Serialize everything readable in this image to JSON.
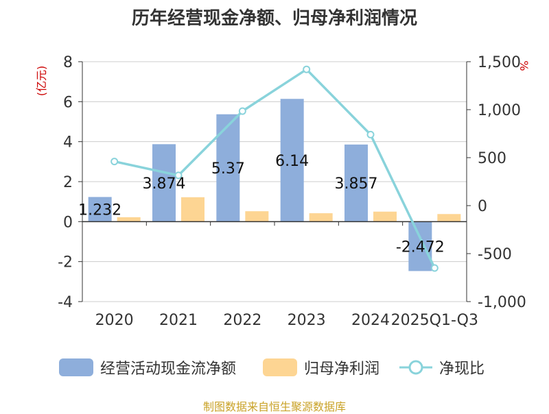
{
  "chart_data": {
    "type": "bar",
    "title": "历年经营现金净额、归母净利润情况",
    "categories": [
      "2020",
      "2021",
      "2022",
      "2023",
      "2024",
      "2025Q1-Q3"
    ],
    "series": [
      {
        "name": "经营活动现金流净额",
        "type": "bar",
        "axis": "left",
        "color": "#8eaedb",
        "values": [
          1.232,
          3.874,
          5.37,
          6.14,
          3.857,
          -2.472
        ]
      },
      {
        "name": "归母净利润",
        "type": "bar",
        "axis": "left",
        "color": "#fdd593",
        "values": [
          0.22,
          1.22,
          0.52,
          0.42,
          0.5,
          0.38
        ]
      },
      {
        "name": "净现比",
        "type": "line",
        "axis": "right",
        "color": "#89d3db",
        "values": [
          460,
          315,
          985,
          1420,
          740,
          -650
        ]
      }
    ],
    "data_labels": [
      "1.232",
      "3.874",
      "5.37",
      "6.14",
      "3.857",
      "-2.472"
    ],
    "ylabel_left": "(亿元)",
    "ylabel_right": "%",
    "ylim_left": [
      -4,
      8
    ],
    "ylim_right": [
      -1000,
      1500
    ],
    "yticks_left": [
      "8",
      "6",
      "4",
      "2",
      "0",
      "-2",
      "-4"
    ],
    "yticks_right": [
      "1,500",
      "1,000",
      "500",
      "0",
      "-500",
      "-1,000"
    ],
    "grid": true,
    "legend_position": "bottom"
  },
  "source": "制图数据来自恒生聚源数据库"
}
